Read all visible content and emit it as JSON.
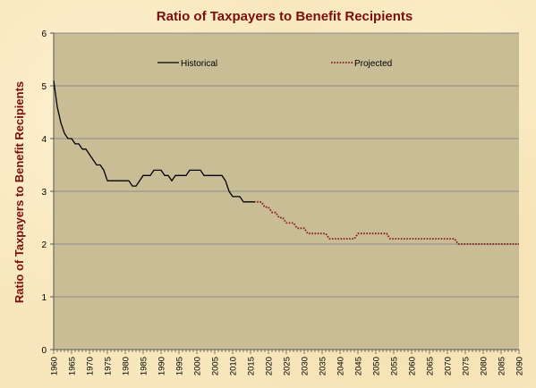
{
  "chart_data": {
    "type": "line",
    "title": "Ratio of Taxpayers to Benefit Recipients",
    "xlabel": "",
    "ylabel": "Ratio of Taxpayers to Benefit Recipients",
    "ylim": [
      0,
      6
    ],
    "xlim": [
      1960,
      2090
    ],
    "yticks": [
      "0",
      "1",
      "2",
      "3",
      "4",
      "5",
      "6"
    ],
    "xticks": [
      "1960",
      "1965",
      "1970",
      "1975",
      "1980",
      "1985",
      "1990",
      "1995",
      "2000",
      "2005",
      "2010",
      "2015",
      "2020",
      "2025",
      "2030",
      "2035",
      "2040",
      "2045",
      "2050",
      "2055",
      "2060",
      "2065",
      "2070",
      "2075",
      "2080",
      "2085",
      "2090"
    ],
    "grid": true,
    "legend_position": "top",
    "colors": {
      "historical": "#000000",
      "projected": "#8b1a1a",
      "plot_bg": "#c9bd96",
      "title": "#7a0e0e"
    },
    "series": [
      {
        "name": "Historical",
        "style": "solid",
        "x": [
          1960,
          1961,
          1962,
          1963,
          1964,
          1965,
          1966,
          1967,
          1968,
          1969,
          1970,
          1971,
          1972,
          1973,
          1974,
          1975,
          1976,
          1977,
          1978,
          1979,
          1980,
          1981,
          1982,
          1983,
          1984,
          1985,
          1986,
          1987,
          1988,
          1989,
          1990,
          1991,
          1992,
          1993,
          1994,
          1995,
          1996,
          1997,
          1998,
          1999,
          2000,
          2001,
          2002,
          2003,
          2004,
          2005,
          2006,
          2007,
          2008,
          2009,
          2010,
          2011,
          2012,
          2013,
          2014,
          2015,
          2016
        ],
        "y": [
          5.1,
          4.6,
          4.3,
          4.1,
          4.0,
          4.0,
          3.9,
          3.9,
          3.8,
          3.8,
          3.7,
          3.6,
          3.5,
          3.5,
          3.4,
          3.2,
          3.2,
          3.2,
          3.2,
          3.2,
          3.2,
          3.2,
          3.1,
          3.1,
          3.2,
          3.3,
          3.3,
          3.3,
          3.4,
          3.4,
          3.4,
          3.3,
          3.3,
          3.2,
          3.3,
          3.3,
          3.3,
          3.3,
          3.4,
          3.4,
          3.4,
          3.4,
          3.3,
          3.3,
          3.3,
          3.3,
          3.3,
          3.3,
          3.2,
          3.0,
          2.9,
          2.9,
          2.9,
          2.8,
          2.8,
          2.8,
          2.8
        ]
      },
      {
        "name": "Projected",
        "style": "dotted",
        "x": [
          2016,
          2017,
          2018,
          2019,
          2020,
          2021,
          2022,
          2023,
          2024,
          2025,
          2026,
          2027,
          2028,
          2029,
          2030,
          2031,
          2032,
          2033,
          2034,
          2035,
          2036,
          2037,
          2038,
          2039,
          2040,
          2041,
          2042,
          2043,
          2044,
          2045,
          2046,
          2047,
          2048,
          2049,
          2050,
          2051,
          2052,
          2053,
          2054,
          2055,
          2056,
          2057,
          2058,
          2059,
          2060,
          2061,
          2062,
          2063,
          2064,
          2065,
          2066,
          2067,
          2068,
          2069,
          2070,
          2071,
          2072,
          2073,
          2074,
          2075,
          2076,
          2077,
          2078,
          2079,
          2080,
          2081,
          2082,
          2083,
          2084,
          2085,
          2086,
          2087,
          2088,
          2089,
          2090
        ],
        "y": [
          2.8,
          2.8,
          2.8,
          2.7,
          2.7,
          2.6,
          2.6,
          2.5,
          2.5,
          2.4,
          2.4,
          2.4,
          2.3,
          2.3,
          2.3,
          2.2,
          2.2,
          2.2,
          2.2,
          2.2,
          2.2,
          2.1,
          2.1,
          2.1,
          2.1,
          2.1,
          2.1,
          2.1,
          2.1,
          2.2,
          2.2,
          2.2,
          2.2,
          2.2,
          2.2,
          2.2,
          2.2,
          2.2,
          2.1,
          2.1,
          2.1,
          2.1,
          2.1,
          2.1,
          2.1,
          2.1,
          2.1,
          2.1,
          2.1,
          2.1,
          2.1,
          2.1,
          2.1,
          2.1,
          2.1,
          2.1,
          2.1,
          2.0,
          2.0,
          2.0,
          2.0,
          2.0,
          2.0,
          2.0,
          2.0,
          2.0,
          2.0,
          2.0,
          2.0,
          2.0,
          2.0,
          2.0,
          2.0,
          2.0,
          2.0
        ]
      }
    ]
  }
}
